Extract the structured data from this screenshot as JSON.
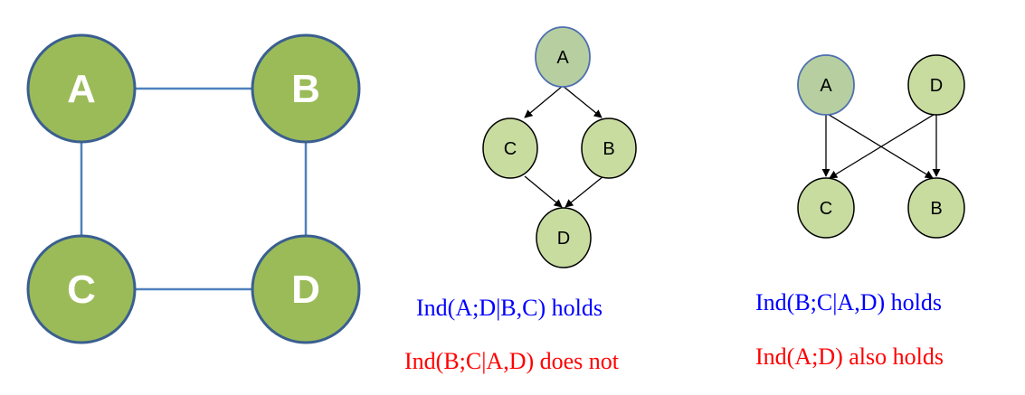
{
  "undirected_graph": {
    "nodes": [
      "A",
      "B",
      "C",
      "D"
    ],
    "edges": [
      [
        "A",
        "B"
      ],
      [
        "A",
        "C"
      ],
      [
        "B",
        "D"
      ],
      [
        "C",
        "D"
      ]
    ]
  },
  "dag_left": {
    "nodes": [
      "A",
      "C",
      "B",
      "D"
    ],
    "edges": [
      [
        "A",
        "C"
      ],
      [
        "A",
        "B"
      ],
      [
        "C",
        "D"
      ],
      [
        "B",
        "D"
      ]
    ],
    "caption_1": "Ind(A;D|B,C) holds",
    "caption_2": "Ind(B;C|A,D) does not"
  },
  "dag_right": {
    "nodes": [
      "A",
      "D",
      "C",
      "B"
    ],
    "edges": [
      [
        "A",
        "C"
      ],
      [
        "A",
        "B"
      ],
      [
        "D",
        "C"
      ],
      [
        "D",
        "B"
      ]
    ],
    "caption_1": "Ind(B;C|A,D) holds",
    "caption_2": "Ind(A;D) also holds"
  },
  "colors": {
    "undirected_fill": "#9bbb59",
    "undirected_stroke": "#3a5f8f",
    "undirected_edge": "#4f81bd",
    "dag_fill": "#c8dca0",
    "dag_highlight_fill": "#b7cfa0",
    "dag_stroke": "#000000",
    "dag_highlight_stroke": "#4f6fb0",
    "caption_true": "#0000ff",
    "caption_false": "#ff0000"
  }
}
